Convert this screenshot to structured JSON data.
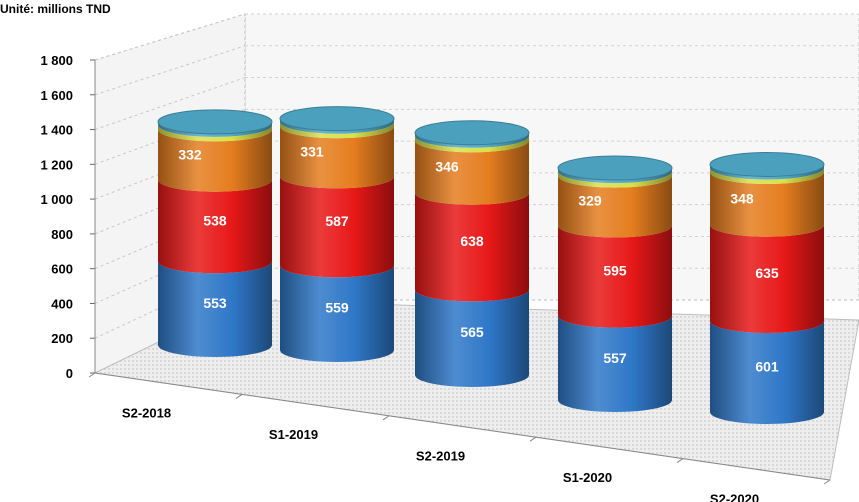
{
  "chart_data": {
    "type": "bar",
    "stacked": true,
    "style": "3d-cylinder",
    "unit_label": "Unité: millions TND",
    "categories": [
      "S2-2018",
      "S1-2019",
      "S2-2019",
      "S1-2020",
      "S2-2020"
    ],
    "series": [
      {
        "values": [
          553,
          559,
          565,
          557,
          601
        ],
        "color": "#2f78c8"
      },
      {
        "values": [
          538,
          587,
          638,
          595,
          635
        ],
        "color": "#e81818"
      },
      {
        "values": [
          332,
          331,
          346,
          329,
          348
        ],
        "color": "#e57d1f"
      },
      {
        "values": [
          30,
          30,
          30,
          30,
          30
        ],
        "color": "#d8e04a"
      },
      {
        "values": [
          20,
          20,
          20,
          20,
          20
        ],
        "color": "#4fa8c8"
      }
    ],
    "yticks": [
      "0",
      "200",
      "400",
      "600",
      "800",
      "1 000",
      "1 200",
      "1 400",
      "1 600",
      "1 800"
    ],
    "ylim": [
      0,
      1800
    ],
    "grid": true
  }
}
